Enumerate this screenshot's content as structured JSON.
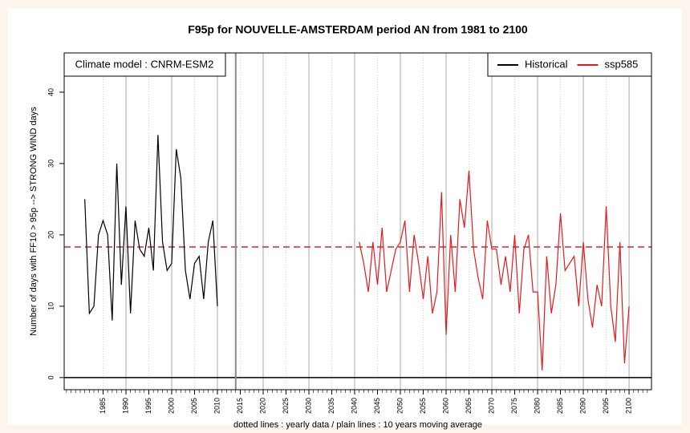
{
  "chart_data": {
    "type": "line",
    "title": "F95p for NOUVELLE-AMSTERDAM period AN from 1981 to 2100",
    "ylabel": "Number of days with FF10 > 95p --> STRONG WIND days",
    "xlabel": "dotted lines : yearly data   /   plain lines : 10 years moving average",
    "annotation": "Climate model :  CNRM-ESM2",
    "xlim": [
      1976.5,
      2104.9
    ],
    "ylim": [
      -1.7,
      45.5
    ],
    "xticks": [
      1985,
      1990,
      1995,
      2000,
      2005,
      2010,
      2015,
      2020,
      2025,
      2030,
      2035,
      2040,
      2045,
      2050,
      2055,
      2060,
      2065,
      2070,
      2075,
      2080,
      2085,
      2090,
      2095,
      2100
    ],
    "yticks": [
      0,
      10,
      20,
      30,
      40
    ],
    "xminor_step": 1,
    "grid": true,
    "legend": "top-right",
    "reference_lines": [
      {
        "axis": "y",
        "value": 18.3,
        "color": "#d62728",
        "style": "dashed"
      },
      {
        "axis": "y",
        "value": 0,
        "color": "#000000",
        "style": "solid"
      },
      {
        "axis": "x",
        "value": 2014,
        "color": "#888888",
        "style": "solid"
      }
    ],
    "series": [
      {
        "name": "Historical",
        "color": "#000000",
        "x": [
          1981,
          1982,
          1983,
          1984,
          1985,
          1986,
          1987,
          1988,
          1989,
          1990,
          1991,
          1992,
          1993,
          1994,
          1995,
          1996,
          1997,
          1998,
          1999,
          2000,
          2001,
          2002,
          2003,
          2004,
          2005,
          2006,
          2007,
          2008,
          2009,
          2010
        ],
        "values": [
          25,
          9,
          10,
          20,
          22,
          20,
          8,
          30,
          13,
          24,
          9,
          22,
          18,
          17,
          21,
          15,
          34,
          19,
          15,
          16,
          32,
          28,
          15,
          11,
          16,
          17,
          11,
          19,
          22,
          10
        ]
      },
      {
        "name": "ssp585",
        "color": "#e41a1c",
        "x": [
          2041,
          2042,
          2043,
          2044,
          2045,
          2046,
          2047,
          2048,
          2049,
          2050,
          2051,
          2052,
          2053,
          2054,
          2055,
          2056,
          2057,
          2058,
          2059,
          2060,
          2061,
          2062,
          2063,
          2064,
          2065,
          2066,
          2067,
          2068,
          2069,
          2070,
          2071,
          2072,
          2073,
          2074,
          2075,
          2076,
          2077,
          2078,
          2079,
          2080,
          2081,
          2082,
          2083,
          2084,
          2085,
          2086,
          2087,
          2088,
          2089,
          2090,
          2091,
          2092,
          2093,
          2094,
          2095,
          2096,
          2097,
          2098,
          2099,
          2100
        ],
        "values": [
          19,
          16,
          12,
          19,
          13,
          21,
          12,
          15,
          18,
          19,
          22,
          12,
          20,
          16,
          11,
          17,
          9,
          12,
          26,
          6,
          20,
          12,
          25,
          21,
          29,
          18,
          14,
          11,
          22,
          18,
          18,
          13,
          17,
          12,
          20,
          9,
          18,
          20,
          12,
          12,
          1,
          17,
          9,
          13,
          23,
          15,
          16,
          17,
          10,
          19,
          11,
          7,
          13,
          10,
          24,
          10,
          5,
          19,
          2,
          10
        ]
      }
    ]
  }
}
